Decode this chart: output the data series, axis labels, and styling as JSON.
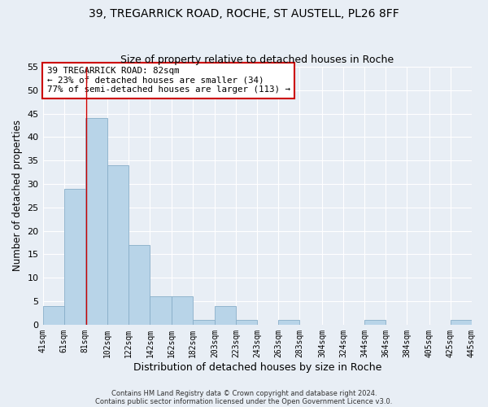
{
  "title1": "39, TREGARRICK ROAD, ROCHE, ST AUSTELL, PL26 8FF",
  "title2": "Size of property relative to detached houses in Roche",
  "xlabel": "Distribution of detached houses by size in Roche",
  "ylabel": "Number of detached properties",
  "bar_values": [
    4,
    29,
    44,
    34,
    17,
    6,
    6,
    1,
    4,
    1,
    0,
    1,
    0,
    0,
    0,
    1,
    0,
    0,
    0,
    1
  ],
  "bin_edges": [
    41,
    61,
    81,
    102,
    122,
    142,
    162,
    182,
    203,
    223,
    243,
    263,
    283,
    304,
    324,
    344,
    364,
    384,
    405,
    425,
    445
  ],
  "tick_labels": [
    "41sqm",
    "61sqm",
    "81sqm",
    "102sqm",
    "122sqm",
    "142sqm",
    "162sqm",
    "182sqm",
    "203sqm",
    "223sqm",
    "243sqm",
    "263sqm",
    "283sqm",
    "304sqm",
    "324sqm",
    "344sqm",
    "364sqm",
    "384sqm",
    "405sqm",
    "425sqm",
    "445sqm"
  ],
  "bar_color": "#b8d4e8",
  "bar_edgecolor": "#88aec8",
  "vline_x": 82,
  "vline_color": "#cc0000",
  "ylim": [
    0,
    55
  ],
  "yticks": [
    0,
    5,
    10,
    15,
    20,
    25,
    30,
    35,
    40,
    45,
    50,
    55
  ],
  "annotation_title": "39 TREGARRICK ROAD: 82sqm",
  "annotation_line1": "← 23% of detached houses are smaller (34)",
  "annotation_line2": "77% of semi-detached houses are larger (113) →",
  "annotation_box_facecolor": "#ffffff",
  "annotation_box_edgecolor": "#cc0000",
  "footer1": "Contains HM Land Registry data © Crown copyright and database right 2024.",
  "footer2": "Contains public sector information licensed under the Open Government Licence v3.0.",
  "bg_color": "#e8eef5",
  "grid_color": "#ffffff",
  "title_fontsize": 10,
  "subtitle_fontsize": 9
}
